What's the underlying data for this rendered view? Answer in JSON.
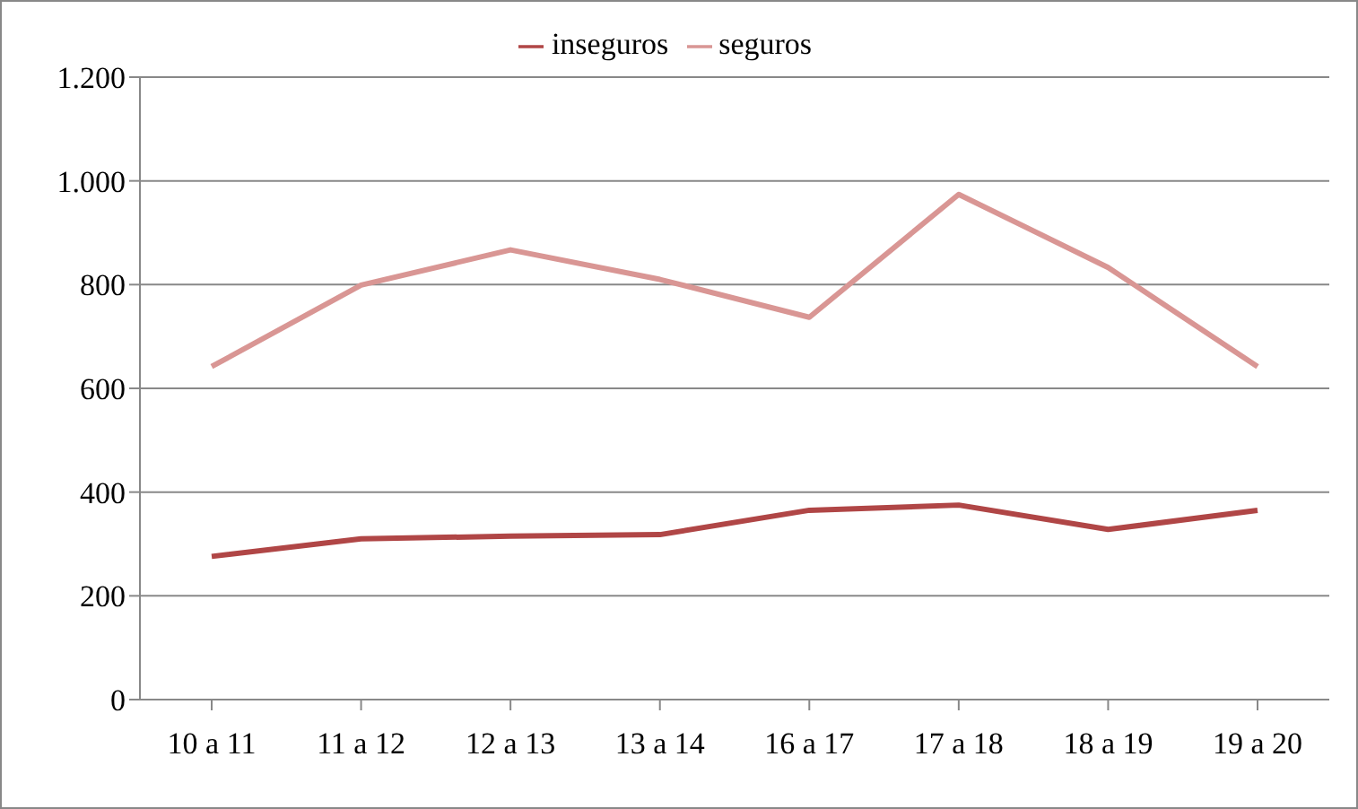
{
  "chart_data": {
    "type": "line",
    "categories": [
      "10 a 11",
      "11 a 12",
      "12 a 13",
      "13 a 14",
      "16 a 17",
      "17 a 18",
      "18 a 19",
      "19 a 20"
    ],
    "series": [
      {
        "name": "inseguros",
        "color": "#b04646",
        "values": [
          276,
          310,
          315,
          318,
          365,
          375,
          328,
          365
        ]
      },
      {
        "name": "seguros",
        "color": "#d99694",
        "values": [
          642,
          799,
          867,
          810,
          737,
          974,
          833,
          642
        ]
      }
    ],
    "ylim": [
      0,
      1200
    ],
    "yticks": [
      0,
      200,
      400,
      600,
      800,
      {
        "value": 1000,
        "label": "1.000"
      },
      {
        "value": 1200,
        "label": "1.200"
      }
    ],
    "grid": "y",
    "legend": "top",
    "marker": "none",
    "line_style": "solid"
  }
}
